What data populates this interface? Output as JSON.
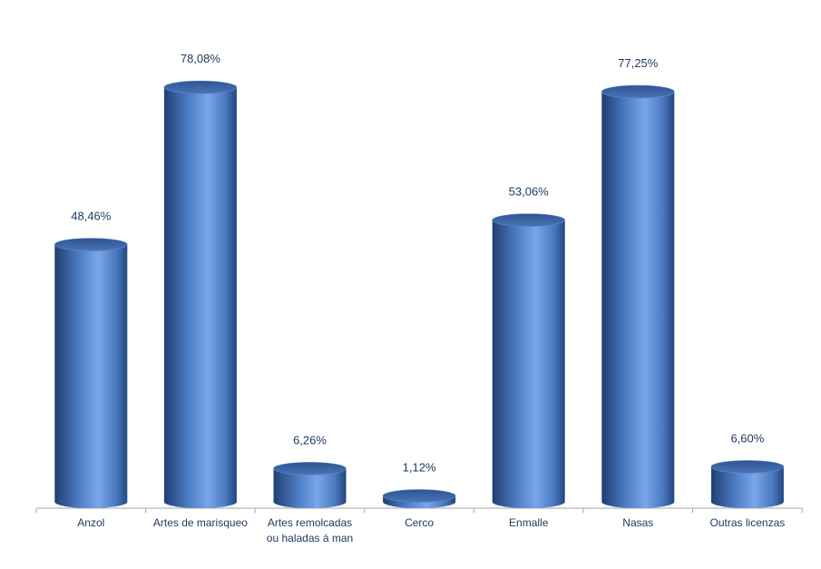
{
  "chart_data": {
    "type": "bar",
    "style": "3d-cylinder",
    "categories": [
      "Anzol",
      "Artes de marisqueo",
      "Artes remolcadas ou haladas á man",
      "Cerco",
      "Enmalle",
      "Nasas",
      "Outras licenzas"
    ],
    "category_lines": [
      [
        "Anzol"
      ],
      [
        "Artes de marisqueo"
      ],
      [
        "Artes remolcadas",
        "ou haladas á man"
      ],
      [
        "Cerco"
      ],
      [
        "Enmalle"
      ],
      [
        "Nasas"
      ],
      [
        "Outras licenzas"
      ]
    ],
    "values": [
      48.46,
      78.08,
      6.26,
      1.12,
      53.06,
      77.25,
      6.6
    ],
    "data_labels": [
      "48,46%",
      "78,08%",
      "6,26%",
      "1,12%",
      "53,06%",
      "77,25%",
      "6,60%"
    ],
    "title": "",
    "xlabel": "",
    "ylabel": "",
    "ylim": [
      0,
      100
    ],
    "grid": false,
    "legend": "none",
    "colors": {
      "bar_dark": "#24467c",
      "bar_light": "#7aa6ea",
      "bar_top": "#3f67a8",
      "text": "#1f3a60",
      "axis": "#a6a6a6"
    }
  }
}
